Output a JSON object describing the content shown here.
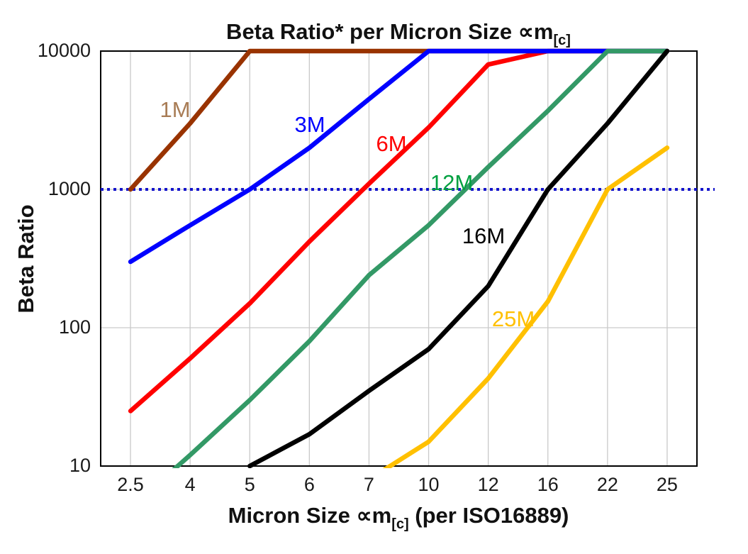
{
  "title": {
    "prefix": "Beta Ratio* per Micron Size ",
    "symbol": "∝m",
    "subscript": "[c]"
  },
  "y_axis": {
    "title": "Beta Ratio",
    "ticks": [
      "10000",
      "1000",
      "100",
      "10"
    ]
  },
  "x_axis": {
    "prefix": "Micron Size ",
    "symbol": "∝m",
    "subscript": "[c]",
    "suffix": " (per ISO16889)",
    "ticks": [
      "2.5",
      "4",
      "5",
      "6",
      "7",
      "10",
      "12",
      "16",
      "22",
      "25"
    ]
  },
  "chart_data": {
    "type": "line",
    "title": "Beta Ratio* per Micron Size ∝m[c]",
    "xlabel": "Micron Size ∝m[c] (per ISO16889)",
    "ylabel": "Beta Ratio",
    "x_scale": "categorical",
    "y_scale": "log",
    "ylim": [
      10,
      10000
    ],
    "grid": true,
    "categories": [
      "2.5",
      "4",
      "5",
      "6",
      "7",
      "10",
      "12",
      "16",
      "22",
      "25"
    ],
    "reference_line": {
      "y": 1000,
      "color": "#1414CC",
      "style": "dotted"
    },
    "note": "Values beyond the axis range are clipped at the plot edges (lines flatten at 10000 and emerge through the 10 baseline).",
    "series": [
      {
        "name": "1M",
        "color": "#993300",
        "label_color": "#A87C55",
        "values": [
          1000,
          3000,
          10000,
          10000,
          10000,
          10000,
          10000,
          10000,
          10000,
          10000
        ]
      },
      {
        "name": "3M",
        "color": "#0000FF",
        "label_color": "#0000FF",
        "values": [
          300,
          550,
          1000,
          2000,
          4500,
          10000,
          10000,
          10000,
          10000,
          10000
        ]
      },
      {
        "name": "6M",
        "color": "#FF0000",
        "label_color": "#FF0000",
        "values": [
          25,
          60,
          150,
          420,
          1100,
          2800,
          8000,
          10000,
          10000,
          10000
        ]
      },
      {
        "name": "12M",
        "color": "#339966",
        "label_color": "#00A040",
        "values": [
          5,
          12,
          30,
          80,
          240,
          550,
          1450,
          3700,
          10000,
          10000
        ]
      },
      {
        "name": "16M",
        "color": "#000000",
        "label_color": "#000000",
        "values": [
          null,
          null,
          10,
          17,
          35,
          70,
          200,
          1000,
          3000,
          10000
        ]
      },
      {
        "name": "25M",
        "color": "#FFC000",
        "label_color": "#FFC000",
        "values": [
          null,
          null,
          null,
          null,
          8,
          15,
          43,
          155,
          1000,
          2000
        ]
      }
    ],
    "draw_order": [
      "6M",
      "1M",
      "3M",
      "12M",
      "16M",
      "25M"
    ],
    "legend_position": "inline-labels"
  }
}
